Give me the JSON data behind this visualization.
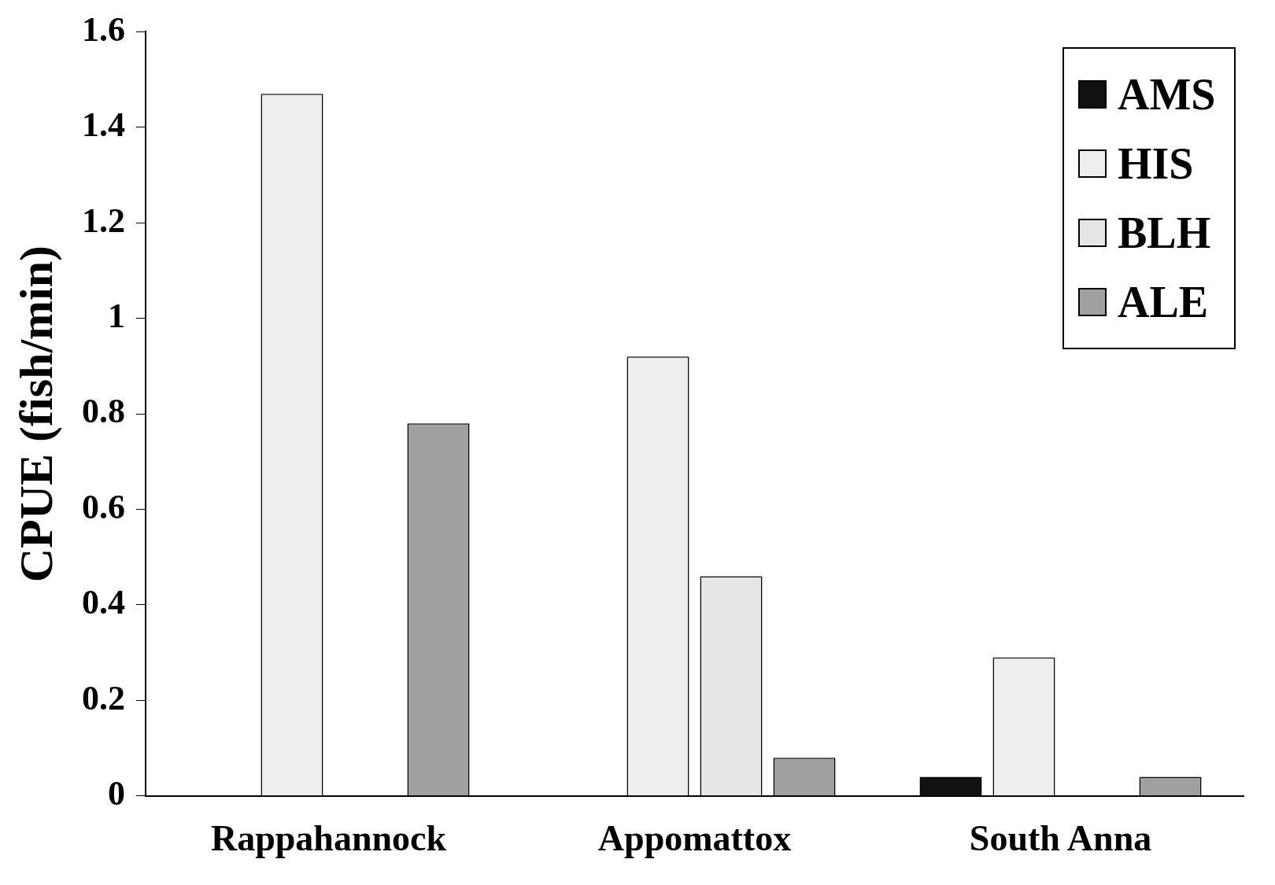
{
  "chart_data": {
    "type": "bar",
    "ylabel": "CPUE (fish/min)",
    "categories": [
      "Rappahannock",
      "Appomattox",
      "South Anna"
    ],
    "series": [
      {
        "name": "AMS",
        "color": "#111111",
        "values": [
          0,
          0,
          0.04
        ]
      },
      {
        "name": "HIS",
        "color": "#eeeeee",
        "values": [
          1.47,
          0.92,
          0.29
        ]
      },
      {
        "name": "BLH",
        "color": "#e6e6e6",
        "values": [
          0,
          0.46,
          0
        ]
      },
      {
        "name": "ALE",
        "color": "#a0a0a0",
        "values": [
          0.78,
          0.08,
          0.04
        ]
      }
    ],
    "ylim": [
      0,
      1.6
    ],
    "yticks": [
      0,
      0.2,
      0.4,
      0.6,
      0.8,
      1,
      1.2,
      1.4,
      1.6
    ],
    "grid": false,
    "legend": "top right"
  }
}
